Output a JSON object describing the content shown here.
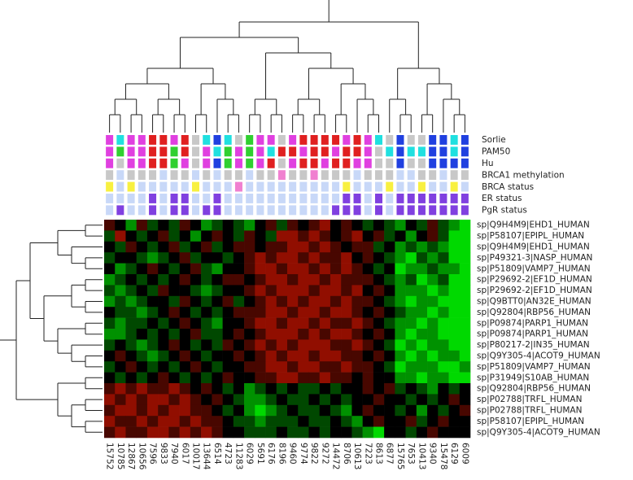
{
  "chart_data": {
    "type": "heatmap",
    "categories": [
      "15752",
      "10785",
      "12867",
      "10656",
      "7596",
      "9833",
      "7940",
      "6017",
      "10017",
      "13644",
      "6514",
      "4723",
      "11283",
      "6029",
      "5691",
      "6176",
      "8196",
      "9460",
      "9774",
      "9822",
      "9272",
      "14472",
      "8706",
      "10613",
      "7223",
      "8613",
      "6877",
      "15765",
      "7653",
      "10413",
      "9340",
      "15478",
      "6129",
      "6009"
    ],
    "rows": [
      "sp|Q9H4M9|EHD1_HUMAN",
      "sp|P58107|EPIPL_HUMAN",
      "sp|Q9H4M9|EHD1_HUMAN",
      "sp|P49321-3|NASP_HUMAN",
      "sp|P51809|VAMP7_HUMAN",
      "sp|P29692-2|EF1D_HUMAN",
      "sp|P29692-2|EF1D_HUMAN",
      "sp|Q9BTT0|AN32E_HUMAN",
      "sp|Q92804|RBP56_HUMAN",
      "sp|P09874|PARP1_HUMAN",
      "sp|P09874|PARP1_HUMAN",
      "sp|P80217-2|IN35_HUMAN",
      "sp|Q9Y305-4|ACOT9_HUMAN",
      "sp|P51809|VAMP7_HUMAN",
      "sp|P31949|S10AB_HUMAN",
      "sp|Q92804|RBP56_HUMAN",
      "sp|P02788|TRFL_HUMAN",
      "sp|P02788|TRFL_HUMAN",
      "sp|P58107|EPIPL_HUMAN",
      "sp|Q9Y305-4|ACOT9_HUMAN"
    ],
    "values": [
      [
        1,
        0,
        -2,
        1,
        -1,
        0,
        -1,
        1,
        0,
        -2,
        -1,
        0,
        -1,
        -2,
        0,
        1,
        -1,
        1,
        0,
        1,
        2,
        0,
        1,
        0,
        -1,
        0,
        -1,
        -2,
        0,
        -1,
        1,
        -1,
        -2,
        -3
      ],
      [
        -1,
        2,
        0,
        -1,
        0,
        1,
        -1,
        0,
        -2,
        0,
        1,
        0,
        -1,
        1,
        0,
        -1,
        2,
        2,
        1,
        2,
        1,
        0,
        1,
        2,
        0,
        1,
        -1,
        0,
        -2,
        0,
        1,
        -1,
        -3,
        -3
      ],
      [
        0,
        -1,
        1,
        0,
        -1,
        0,
        1,
        -1,
        0,
        1,
        -1,
        0,
        1,
        1,
        0,
        1,
        1,
        2,
        2,
        1,
        2,
        1,
        0,
        1,
        1,
        -1,
        0,
        -2,
        -1,
        -2,
        -1,
        -2,
        -3,
        -3
      ],
      [
        -1,
        0,
        0,
        -1,
        -2,
        -1,
        0,
        1,
        -1,
        0,
        0,
        -1,
        0,
        1,
        2,
        1,
        2,
        2,
        1,
        2,
        1,
        1,
        2,
        0,
        1,
        0,
        -1,
        -2,
        -3,
        -1,
        -2,
        -1,
        -3,
        -3
      ],
      [
        0,
        -2,
        -1,
        0,
        1,
        0,
        -1,
        0,
        1,
        -1,
        -2,
        0,
        0,
        1,
        2,
        2,
        1,
        2,
        2,
        1,
        2,
        1,
        2,
        1,
        0,
        -1,
        0,
        -3,
        -2,
        -2,
        -1,
        -2,
        -2,
        -3
      ],
      [
        -2,
        -1,
        0,
        -1,
        0,
        -1,
        0,
        1,
        0,
        -1,
        0,
        1,
        1,
        0,
        1,
        2,
        2,
        1,
        2,
        2,
        1,
        2,
        1,
        1,
        1,
        0,
        -1,
        -2,
        -1,
        -3,
        -2,
        -1,
        -3,
        -3
      ],
      [
        -1,
        -2,
        -1,
        0,
        -1,
        1,
        0,
        0,
        -1,
        -2,
        -1,
        0,
        0,
        1,
        2,
        1,
        2,
        2,
        2,
        1,
        2,
        2,
        1,
        2,
        0,
        1,
        0,
        -2,
        -2,
        -2,
        -3,
        -2,
        -3,
        -3
      ],
      [
        -2,
        -1,
        -2,
        -1,
        0,
        0,
        -1,
        1,
        0,
        -1,
        0,
        1,
        -1,
        0,
        1,
        2,
        1,
        2,
        1,
        2,
        2,
        1,
        2,
        1,
        1,
        0,
        -1,
        -2,
        -3,
        -2,
        -2,
        -3,
        -3,
        -3
      ],
      [
        0,
        -1,
        -1,
        -2,
        -1,
        0,
        1,
        0,
        -1,
        0,
        -1,
        0,
        1,
        1,
        1,
        2,
        2,
        1,
        2,
        2,
        1,
        2,
        2,
        1,
        0,
        1,
        0,
        -1,
        -2,
        -2,
        -3,
        -2,
        -3,
        -3
      ],
      [
        -1,
        -2,
        -1,
        -1,
        0,
        -1,
        0,
        1,
        0,
        -1,
        -2,
        0,
        0,
        1,
        2,
        2,
        1,
        2,
        2,
        1,
        2,
        1,
        1,
        2,
        1,
        0,
        -1,
        -2,
        -2,
        -3,
        -2,
        -3,
        -3,
        -3
      ],
      [
        -2,
        -2,
        -1,
        0,
        -1,
        0,
        -1,
        0,
        1,
        -1,
        -1,
        0,
        1,
        0,
        1,
        2,
        2,
        2,
        1,
        2,
        1,
        2,
        2,
        1,
        0,
        1,
        0,
        -2,
        -3,
        -2,
        -2,
        -3,
        -3,
        -3
      ],
      [
        -1,
        0,
        -1,
        -2,
        -1,
        0,
        1,
        0,
        -1,
        0,
        -1,
        1,
        0,
        1,
        2,
        1,
        2,
        1,
        2,
        2,
        2,
        1,
        1,
        2,
        1,
        0,
        -1,
        -3,
        -2,
        -3,
        -2,
        -2,
        -3,
        -3
      ],
      [
        0,
        1,
        0,
        -1,
        -2,
        -1,
        0,
        1,
        0,
        -1,
        0,
        0,
        1,
        0,
        1,
        2,
        1,
        2,
        2,
        1,
        2,
        2,
        1,
        1,
        0,
        1,
        0,
        -2,
        -3,
        -2,
        -3,
        -2,
        -2,
        -3
      ],
      [
        -1,
        0,
        1,
        0,
        -1,
        0,
        -1,
        0,
        1,
        0,
        -1,
        0,
        0,
        1,
        1,
        2,
        2,
        1,
        2,
        2,
        1,
        1,
        2,
        1,
        1,
        0,
        -1,
        -3,
        -2,
        -2,
        -2,
        -3,
        -3,
        -2
      ],
      [
        0,
        -1,
        0,
        -1,
        0,
        1,
        0,
        -1,
        0,
        -1,
        0,
        1,
        0,
        0,
        1,
        1,
        2,
        2,
        1,
        1,
        2,
        1,
        1,
        0,
        1,
        0,
        0,
        -2,
        -2,
        -3,
        -2,
        -2,
        -3,
        -3
      ],
      [
        1,
        2,
        1,
        2,
        1,
        1,
        2,
        1,
        0,
        1,
        0,
        -1,
        0,
        -2,
        -1,
        0,
        -1,
        0,
        -1,
        -1,
        0,
        -1,
        0,
        0,
        1,
        0,
        1,
        -1,
        0,
        -1,
        -2,
        0,
        -1,
        0
      ],
      [
        2,
        1,
        2,
        1,
        2,
        2,
        1,
        2,
        1,
        0,
        1,
        0,
        -1,
        -2,
        -2,
        -1,
        0,
        -1,
        -1,
        0,
        -1,
        0,
        -1,
        0,
        0,
        1,
        0,
        0,
        -1,
        0,
        -1,
        0,
        1,
        0
      ],
      [
        1,
        2,
        2,
        1,
        2,
        1,
        2,
        2,
        1,
        1,
        0,
        -1,
        0,
        -2,
        -3,
        -2,
        -1,
        0,
        -1,
        -1,
        0,
        -1,
        -2,
        0,
        1,
        0,
        0,
        -1,
        0,
        -2,
        0,
        -1,
        0,
        1
      ],
      [
        2,
        1,
        1,
        2,
        1,
        2,
        2,
        1,
        2,
        1,
        1,
        0,
        -1,
        -1,
        -2,
        -1,
        -1,
        -1,
        0,
        -1,
        -1,
        0,
        -1,
        -2,
        0,
        1,
        0,
        0,
        1,
        -1,
        0,
        1,
        0,
        0
      ],
      [
        1,
        2,
        1,
        1,
        2,
        2,
        1,
        2,
        1,
        2,
        1,
        0,
        0,
        -1,
        -1,
        -1,
        0,
        -1,
        -1,
        0,
        -1,
        0,
        0,
        -1,
        -2,
        -3,
        0,
        0,
        -1,
        0,
        1,
        0,
        0,
        0
      ]
    ],
    "zlim": [
      -3,
      3
    ],
    "colors": {
      "low": "#00ff00",
      "mid": "#000000",
      "high": "#ff1800"
    },
    "tracks": [
      {
        "name": "Sorlie",
        "colors": [
          "#e040e0",
          "#20e0e0",
          "#e040e0",
          "#e040e0",
          "#e02020",
          "#e02020",
          "#e040e0",
          "#e02020",
          "#c8c8c8",
          "#20e0e0",
          "#2040e0",
          "#20e0e0",
          "#c8c8c8",
          "#30d030",
          "#e040e0",
          "#e040e0",
          "#c8c8c8",
          "#e040e0",
          "#e02020",
          "#e02020",
          "#e02020",
          "#e02020",
          "#e040e0",
          "#e02020",
          "#e040e0",
          "#20e0e0",
          "#c8c8c8",
          "#2040e0",
          "#c8c8c8",
          "#c8c8c8",
          "#2040e0",
          "#2040e0",
          "#20e0e0",
          "#2040e0"
        ]
      },
      {
        "name": "PAM50",
        "colors": [
          "#e040e0",
          "#30d030",
          "#e040e0",
          "#e040e0",
          "#e02020",
          "#e02020",
          "#30d030",
          "#e02020",
          "#c8c8c8",
          "#e040e0",
          "#20e0e0",
          "#30d030",
          "#e040e0",
          "#30d030",
          "#e040e0",
          "#20e0e0",
          "#e02020",
          "#e02020",
          "#e040e0",
          "#e02020",
          "#e02020",
          "#e040e0",
          "#e02020",
          "#e02020",
          "#e040e0",
          "#c8c8c8",
          "#20e0e0",
          "#2040e0",
          "#20e0e0",
          "#20e0e0",
          "#2040e0",
          "#2040e0",
          "#20e0e0",
          "#2040e0"
        ]
      },
      {
        "name": "Hu",
        "colors": [
          "#e040e0",
          "#c8c8c8",
          "#e040e0",
          "#e040e0",
          "#e02020",
          "#e02020",
          "#30d030",
          "#e040e0",
          "#c8c8c8",
          "#e040e0",
          "#2040e0",
          "#30d030",
          "#e040e0",
          "#30d030",
          "#e040e0",
          "#e02020",
          "#c8c8c8",
          "#e040e0",
          "#e02020",
          "#e02020",
          "#e040e0",
          "#e02020",
          "#e02020",
          "#e040e0",
          "#e040e0",
          "#c8c8c8",
          "#c8c8c8",
          "#2040e0",
          "#c8c8c8",
          "#c8c8c8",
          "#2040e0",
          "#2040e0",
          "#2040e0",
          "#2040e0"
        ]
      },
      {
        "name": "BRCA1 methylation",
        "colors": [
          "#c8c8c8",
          "#c8d8f8",
          "#c8c8c8",
          "#c8c8c8",
          "#c8c8c8",
          "#c8d8f8",
          "#c8c8c8",
          "#c8c8c8",
          "#c8d8f8",
          "#c8c8c8",
          "#c8d8f8",
          "#c8c8c8",
          "#c8c8c8",
          "#c8d8f8",
          "#c8c8c8",
          "#c8c8c8",
          "#f080d0",
          "#c8c8c8",
          "#c8c8c8",
          "#f080d0",
          "#c8c8c8",
          "#c8c8c8",
          "#c8c8c8",
          "#c8d8f8",
          "#c8c8c8",
          "#c8c8c8",
          "#c8c8c8",
          "#c8d8f8",
          "#c8d8f8",
          "#c8c8c8",
          "#c8c8c8",
          "#c8d8f8",
          "#c8c8c8",
          "#c8c8c8"
        ]
      },
      {
        "name": "BRCA status",
        "colors": [
          "#f8f040",
          "#c8d8f8",
          "#f8f040",
          "#c8d8f8",
          "#c8d8f8",
          "#c8d8f8",
          "#c8d8f8",
          "#c8d8f8",
          "#f8f040",
          "#c8d8f8",
          "#c8d8f8",
          "#c8d8f8",
          "#f080d0",
          "#c8d8f8",
          "#c8d8f8",
          "#c8d8f8",
          "#c8d8f8",
          "#c8d8f8",
          "#c8d8f8",
          "#c8d8f8",
          "#c8d8f8",
          "#c8d8f8",
          "#f8f040",
          "#c8d8f8",
          "#c8d8f8",
          "#c8d8f8",
          "#f8f040",
          "#c8d8f8",
          "#c8d8f8",
          "#f8f040",
          "#c8d8f8",
          "#c8d8f8",
          "#f8f040",
          "#c8d8f8"
        ]
      },
      {
        "name": "ER status",
        "colors": [
          "#c8d8f8",
          "#c8d8f8",
          "#c8d8f8",
          "#c8d8f8",
          "#8040e0",
          "#c8d8f8",
          "#8040e0",
          "#8040e0",
          "#c8d8f8",
          "#c8d8f8",
          "#8040e0",
          "#c8d8f8",
          "#c8d8f8",
          "#c8d8f8",
          "#c8d8f8",
          "#c8d8f8",
          "#c8d8f8",
          "#c8d8f8",
          "#c8d8f8",
          "#c8d8f8",
          "#c8d8f8",
          "#c8d8f8",
          "#8040e0",
          "#8040e0",
          "#c8d8f8",
          "#8040e0",
          "#c8d8f8",
          "#8040e0",
          "#8040e0",
          "#8040e0",
          "#8040e0",
          "#8040e0",
          "#8040e0",
          "#8040e0"
        ]
      },
      {
        "name": "PgR status",
        "colors": [
          "#c8d8f8",
          "#8040e0",
          "#c8d8f8",
          "#c8d8f8",
          "#8040e0",
          "#c8d8f8",
          "#8040e0",
          "#8040e0",
          "#c8d8f8",
          "#8040e0",
          "#8040e0",
          "#c8d8f8",
          "#c8d8f8",
          "#c8d8f8",
          "#c8d8f8",
          "#c8d8f8",
          "#c8d8f8",
          "#c8d8f8",
          "#c8d8f8",
          "#c8d8f8",
          "#c8d8f8",
          "#8040e0",
          "#8040e0",
          "#8040e0",
          "#c8d8f8",
          "#8040e0",
          "#c8d8f8",
          "#8040e0",
          "#8040e0",
          "#8040e0",
          "#8040e0",
          "#8040e0",
          "#8040e0",
          "#8040e0"
        ]
      }
    ]
  }
}
